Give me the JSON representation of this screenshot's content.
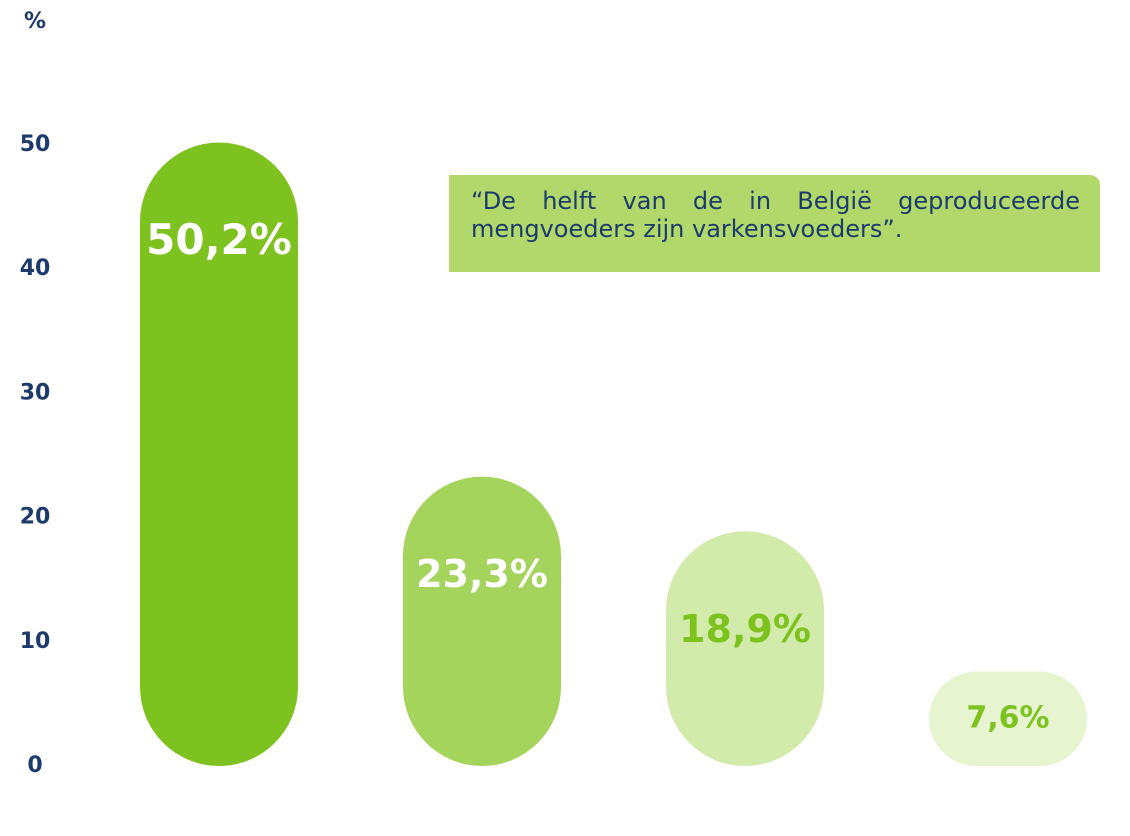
{
  "chart_data": {
    "type": "bar",
    "y_axis_label": "%",
    "values": [
      50.2,
      23.3,
      18.9,
      7.6
    ],
    "value_labels": [
      "50,2%",
      "23,3%",
      "18,9%",
      "7,6%"
    ],
    "colors": [
      "#7dc21e",
      "#a5d45c",
      "#d2ebab",
      "#e6f4d0"
    ],
    "label_colors": [
      "#ffffff",
      "#ffffff",
      "#7dc21e",
      "#7dc21e"
    ],
    "ylim": [
      0,
      50
    ],
    "yticks": [
      0,
      10,
      20,
      30,
      40,
      50
    ],
    "annotation": "“De helft van de in België geproduceerde mengvoeders zijn varkensvoeders”."
  }
}
